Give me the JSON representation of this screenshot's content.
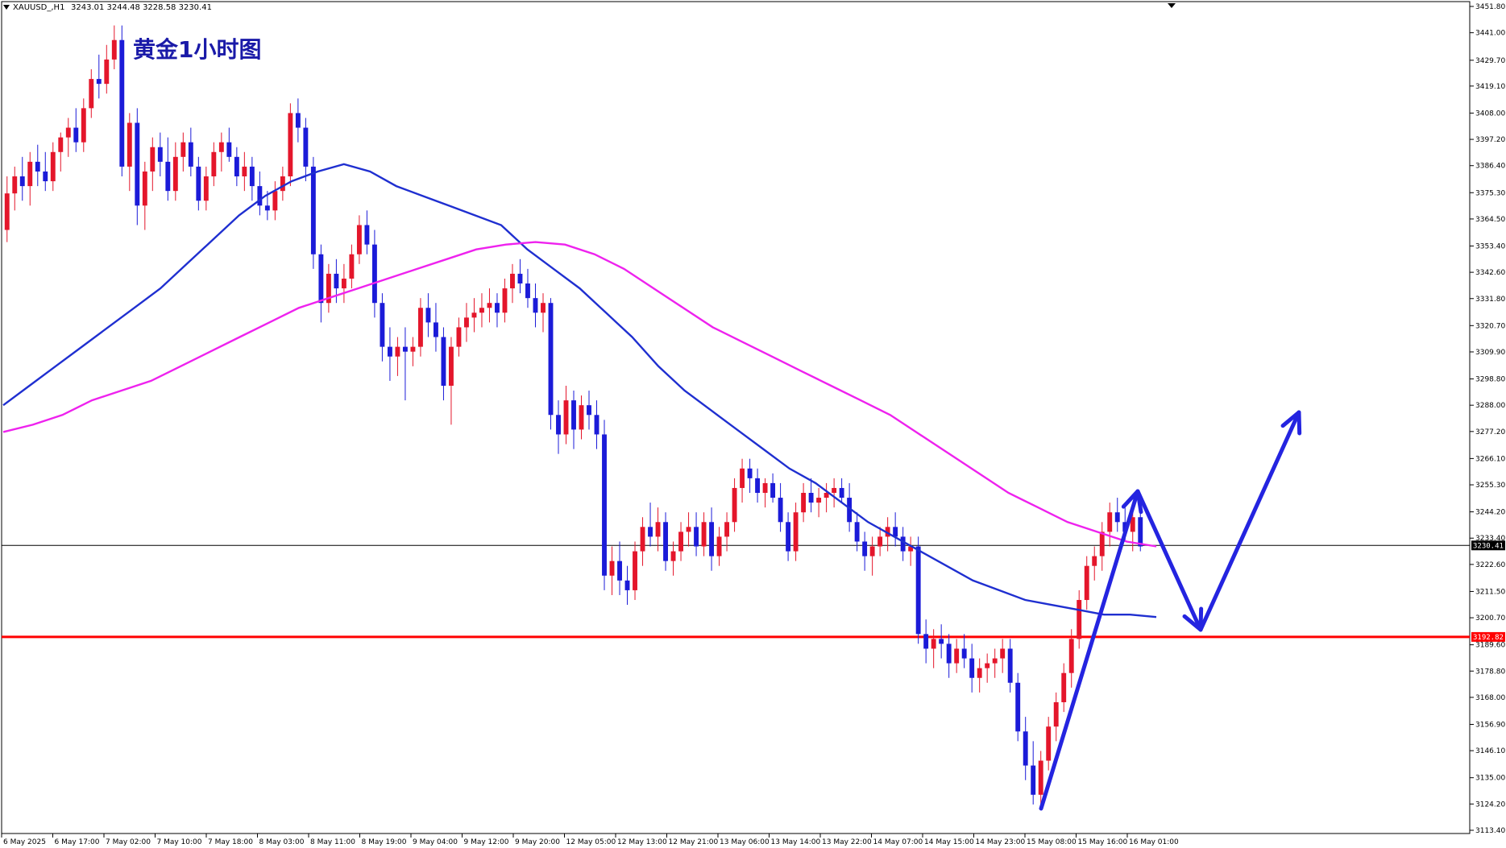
{
  "header": {
    "symbol": "XAUUSD_,H1",
    "ohlc": "3243.01 3244.48 3228.58 3230.41"
  },
  "title": "黄金1小时图",
  "colors": {
    "bull": "#e4162b",
    "bear": "#1b1bd8",
    "ma_fast": "#1f2fd0",
    "ma_slow": "#ee22ee",
    "support": "#ff0000",
    "arrow": "#2424e0",
    "current_tag": "#000000",
    "support_tag": "#ff0000"
  },
  "chart_data": {
    "type": "candlestick",
    "title": "黄金1小时图",
    "ylim": [
      3113.4,
      3451.8
    ],
    "y_ticks": [
      "3451.80",
      "3441.00",
      "3429.70",
      "3419.10",
      "3408.00",
      "3397.20",
      "3386.40",
      "3375.30",
      "3364.50",
      "3353.40",
      "3342.60",
      "3331.80",
      "3320.70",
      "3309.90",
      "3298.80",
      "3288.00",
      "3277.20",
      "3266.10",
      "3255.30",
      "3244.20",
      "3233.40",
      "3222.60",
      "3211.50",
      "3200.70",
      "3189.60",
      "3178.80",
      "3168.00",
      "3156.90",
      "3146.10",
      "3135.00",
      "3124.20",
      "3113.40"
    ],
    "x_ticks": [
      "6 May 2025",
      "6 May 17:00",
      "7 May 02:00",
      "7 May 10:00",
      "7 May 18:00",
      "8 May 03:00",
      "8 May 11:00",
      "8 May 19:00",
      "9 May 04:00",
      "9 May 12:00",
      "9 May 20:00",
      "12 May 05:00",
      "12 May 13:00",
      "12 May 21:00",
      "13 May 06:00",
      "13 May 14:00",
      "13 May 22:00",
      "14 May 07:00",
      "14 May 15:00",
      "14 May 23:00",
      "15 May 08:00",
      "15 May 16:00",
      "16 May 01:00"
    ],
    "current_price": "3230.41",
    "support_level": "3192.82",
    "candles": [
      [
        3360,
        3382,
        3355,
        3375
      ],
      [
        3375,
        3386,
        3368,
        3382
      ],
      [
        3382,
        3390,
        3372,
        3378
      ],
      [
        3378,
        3392,
        3370,
        3388
      ],
      [
        3388,
        3395,
        3378,
        3384
      ],
      [
        3384,
        3392,
        3376,
        3380
      ],
      [
        3380,
        3396,
        3376,
        3392
      ],
      [
        3392,
        3400,
        3384,
        3398
      ],
      [
        3398,
        3406,
        3390,
        3402
      ],
      [
        3402,
        3410,
        3392,
        3396
      ],
      [
        3396,
        3414,
        3392,
        3410
      ],
      [
        3410,
        3426,
        3406,
        3422
      ],
      [
        3422,
        3432,
        3414,
        3420
      ],
      [
        3420,
        3436,
        3416,
        3430
      ],
      [
        3430,
        3444,
        3426,
        3438
      ],
      [
        3438,
        3444,
        3382,
        3386
      ],
      [
        3386,
        3408,
        3376,
        3404
      ],
      [
        3404,
        3410,
        3362,
        3370
      ],
      [
        3370,
        3388,
        3360,
        3384
      ],
      [
        3384,
        3398,
        3376,
        3394
      ],
      [
        3394,
        3400,
        3382,
        3388
      ],
      [
        3388,
        3398,
        3372,
        3376
      ],
      [
        3376,
        3396,
        3372,
        3390
      ],
      [
        3390,
        3400,
        3384,
        3396
      ],
      [
        3396,
        3402,
        3382,
        3386
      ],
      [
        3386,
        3390,
        3368,
        3372
      ],
      [
        3372,
        3386,
        3368,
        3382
      ],
      [
        3382,
        3396,
        3378,
        3392
      ],
      [
        3392,
        3400,
        3384,
        3396
      ],
      [
        3396,
        3402,
        3388,
        3390
      ],
      [
        3390,
        3394,
        3378,
        3382
      ],
      [
        3382,
        3392,
        3376,
        3386
      ],
      [
        3386,
        3390,
        3372,
        3378
      ],
      [
        3378,
        3384,
        3366,
        3370
      ],
      [
        3370,
        3376,
        3364,
        3368
      ],
      [
        3368,
        3380,
        3364,
        3376
      ],
      [
        3376,
        3386,
        3372,
        3382
      ],
      [
        3382,
        3412,
        3378,
        3408
      ],
      [
        3408,
        3414,
        3396,
        3402
      ],
      [
        3402,
        3406,
        3380,
        3386
      ],
      [
        3386,
        3390,
        3344,
        3350
      ],
      [
        3350,
        3354,
        3322,
        3330
      ],
      [
        3330,
        3346,
        3326,
        3342
      ],
      [
        3342,
        3348,
        3330,
        3336
      ],
      [
        3336,
        3346,
        3330,
        3340
      ],
      [
        3340,
        3354,
        3336,
        3350
      ],
      [
        3350,
        3366,
        3346,
        3362
      ],
      [
        3362,
        3368,
        3350,
        3354
      ],
      [
        3354,
        3360,
        3324,
        3330
      ],
      [
        3330,
        3334,
        3306,
        3312
      ],
      [
        3312,
        3320,
        3298,
        3308
      ],
      [
        3308,
        3316,
        3300,
        3312
      ],
      [
        3312,
        3320,
        3290,
        3310
      ],
      [
        3310,
        3316,
        3304,
        3312
      ],
      [
        3312,
        3332,
        3308,
        3328
      ],
      [
        3328,
        3334,
        3316,
        3322
      ],
      [
        3322,
        3330,
        3310,
        3316
      ],
      [
        3316,
        3320,
        3290,
        3296
      ],
      [
        3296,
        3316,
        3280,
        3312
      ],
      [
        3312,
        3324,
        3308,
        3320
      ],
      [
        3320,
        3330,
        3314,
        3324
      ],
      [
        3324,
        3332,
        3318,
        3326
      ],
      [
        3326,
        3334,
        3320,
        3328
      ],
      [
        3328,
        3336,
        3322,
        3330
      ],
      [
        3330,
        3334,
        3320,
        3326
      ],
      [
        3326,
        3340,
        3322,
        3336
      ],
      [
        3336,
        3346,
        3330,
        3342
      ],
      [
        3342,
        3348,
        3334,
        3338
      ],
      [
        3338,
        3344,
        3328,
        3332
      ],
      [
        3332,
        3338,
        3320,
        3326
      ],
      [
        3326,
        3334,
        3318,
        3330
      ],
      [
        3330,
        3332,
        3278,
        3284
      ],
      [
        3284,
        3290,
        3268,
        3276
      ],
      [
        3276,
        3296,
        3272,
        3290
      ],
      [
        3290,
        3294,
        3270,
        3278
      ],
      [
        3278,
        3292,
        3274,
        3288
      ],
      [
        3288,
        3294,
        3278,
        3284
      ],
      [
        3284,
        3290,
        3270,
        3276
      ],
      [
        3276,
        3282,
        3212,
        3218
      ],
      [
        3218,
        3230,
        3210,
        3224
      ],
      [
        3224,
        3232,
        3210,
        3216
      ],
      [
        3216,
        3222,
        3206,
        3212
      ],
      [
        3212,
        3232,
        3208,
        3228
      ],
      [
        3228,
        3242,
        3222,
        3238
      ],
      [
        3238,
        3248,
        3230,
        3234
      ],
      [
        3234,
        3246,
        3228,
        3240
      ],
      [
        3240,
        3244,
        3220,
        3224
      ],
      [
        3224,
        3232,
        3218,
        3228
      ],
      [
        3228,
        3240,
        3224,
        3236
      ],
      [
        3236,
        3244,
        3230,
        3238
      ],
      [
        3238,
        3244,
        3226,
        3230
      ],
      [
        3230,
        3244,
        3226,
        3240
      ],
      [
        3240,
        3246,
        3220,
        3226
      ],
      [
        3226,
        3238,
        3222,
        3234
      ],
      [
        3234,
        3244,
        3228,
        3240
      ],
      [
        3240,
        3258,
        3236,
        3254
      ],
      [
        3254,
        3266,
        3248,
        3262
      ],
      [
        3262,
        3266,
        3252,
        3258
      ],
      [
        3258,
        3262,
        3248,
        3252
      ],
      [
        3252,
        3258,
        3246,
        3256
      ],
      [
        3256,
        3260,
        3248,
        3250
      ],
      [
        3250,
        3256,
        3236,
        3240
      ],
      [
        3240,
        3244,
        3224,
        3228
      ],
      [
        3228,
        3248,
        3224,
        3244
      ],
      [
        3244,
        3256,
        3240,
        3252
      ],
      [
        3252,
        3258,
        3244,
        3248
      ],
      [
        3248,
        3254,
        3242,
        3250
      ],
      [
        3250,
        3256,
        3244,
        3252
      ],
      [
        3252,
        3258,
        3246,
        3254
      ],
      [
        3254,
        3258,
        3248,
        3250
      ],
      [
        3250,
        3256,
        3236,
        3240
      ],
      [
        3240,
        3244,
        3228,
        3232
      ],
      [
        3232,
        3236,
        3220,
        3226
      ],
      [
        3226,
        3234,
        3218,
        3230
      ],
      [
        3230,
        3238,
        3226,
        3234
      ],
      [
        3234,
        3242,
        3228,
        3238
      ],
      [
        3238,
        3244,
        3230,
        3234
      ],
      [
        3234,
        3238,
        3224,
        3228
      ],
      [
        3228,
        3234,
        3222,
        3230
      ],
      [
        3230,
        3234,
        3190,
        3194
      ],
      [
        3194,
        3200,
        3182,
        3188
      ],
      [
        3188,
        3196,
        3180,
        3192
      ],
      [
        3192,
        3198,
        3184,
        3190
      ],
      [
        3190,
        3194,
        3176,
        3182
      ],
      [
        3182,
        3192,
        3178,
        3188
      ],
      [
        3188,
        3194,
        3180,
        3184
      ],
      [
        3184,
        3190,
        3170,
        3176
      ],
      [
        3176,
        3184,
        3170,
        3180
      ],
      [
        3180,
        3186,
        3174,
        3182
      ],
      [
        3182,
        3188,
        3176,
        3184
      ],
      [
        3184,
        3192,
        3178,
        3188
      ],
      [
        3188,
        3192,
        3170,
        3174
      ],
      [
        3174,
        3178,
        3150,
        3154
      ],
      [
        3154,
        3160,
        3134,
        3140
      ],
      [
        3140,
        3150,
        3124,
        3128
      ],
      [
        3128,
        3146,
        3122,
        3142
      ],
      [
        3142,
        3160,
        3138,
        3156
      ],
      [
        3156,
        3170,
        3150,
        3166
      ],
      [
        3166,
        3182,
        3162,
        3178
      ],
      [
        3178,
        3196,
        3172,
        3192
      ],
      [
        3192,
        3212,
        3188,
        3208
      ],
      [
        3208,
        3226,
        3204,
        3222
      ],
      [
        3222,
        3230,
        3216,
        3226
      ],
      [
        3226,
        3240,
        3220,
        3236
      ],
      [
        3236,
        3248,
        3230,
        3244
      ],
      [
        3244,
        3250,
        3236,
        3240
      ],
      [
        3240,
        3246,
        3232,
        3236
      ],
      [
        3236,
        3244,
        3228,
        3242
      ],
      [
        3242,
        3244,
        3228,
        3230
      ]
    ],
    "ma_fast": [
      3288,
      3296,
      3304,
      3312,
      3320,
      3328,
      3336,
      3346,
      3356,
      3366,
      3374,
      3380,
      3384,
      3387,
      3384,
      3378,
      3374,
      3370,
      3366,
      3362,
      3352,
      3344,
      3336,
      3326,
      3316,
      3304,
      3294,
      3286,
      3278,
      3270,
      3262,
      3256,
      3248,
      3240,
      3234,
      3228,
      3222,
      3216,
      3212,
      3208,
      3206,
      3204,
      3202,
      3202,
      3201
    ],
    "ma_slow": [
      3277,
      3280,
      3284,
      3290,
      3294,
      3298,
      3304,
      3310,
      3316,
      3322,
      3328,
      3332,
      3336,
      3340,
      3344,
      3348,
      3352,
      3354,
      3355,
      3354,
      3350,
      3344,
      3336,
      3328,
      3320,
      3314,
      3308,
      3302,
      3296,
      3290,
      3284,
      3276,
      3268,
      3260,
      3252,
      3246,
      3240,
      3236,
      3232,
      3230
    ]
  }
}
